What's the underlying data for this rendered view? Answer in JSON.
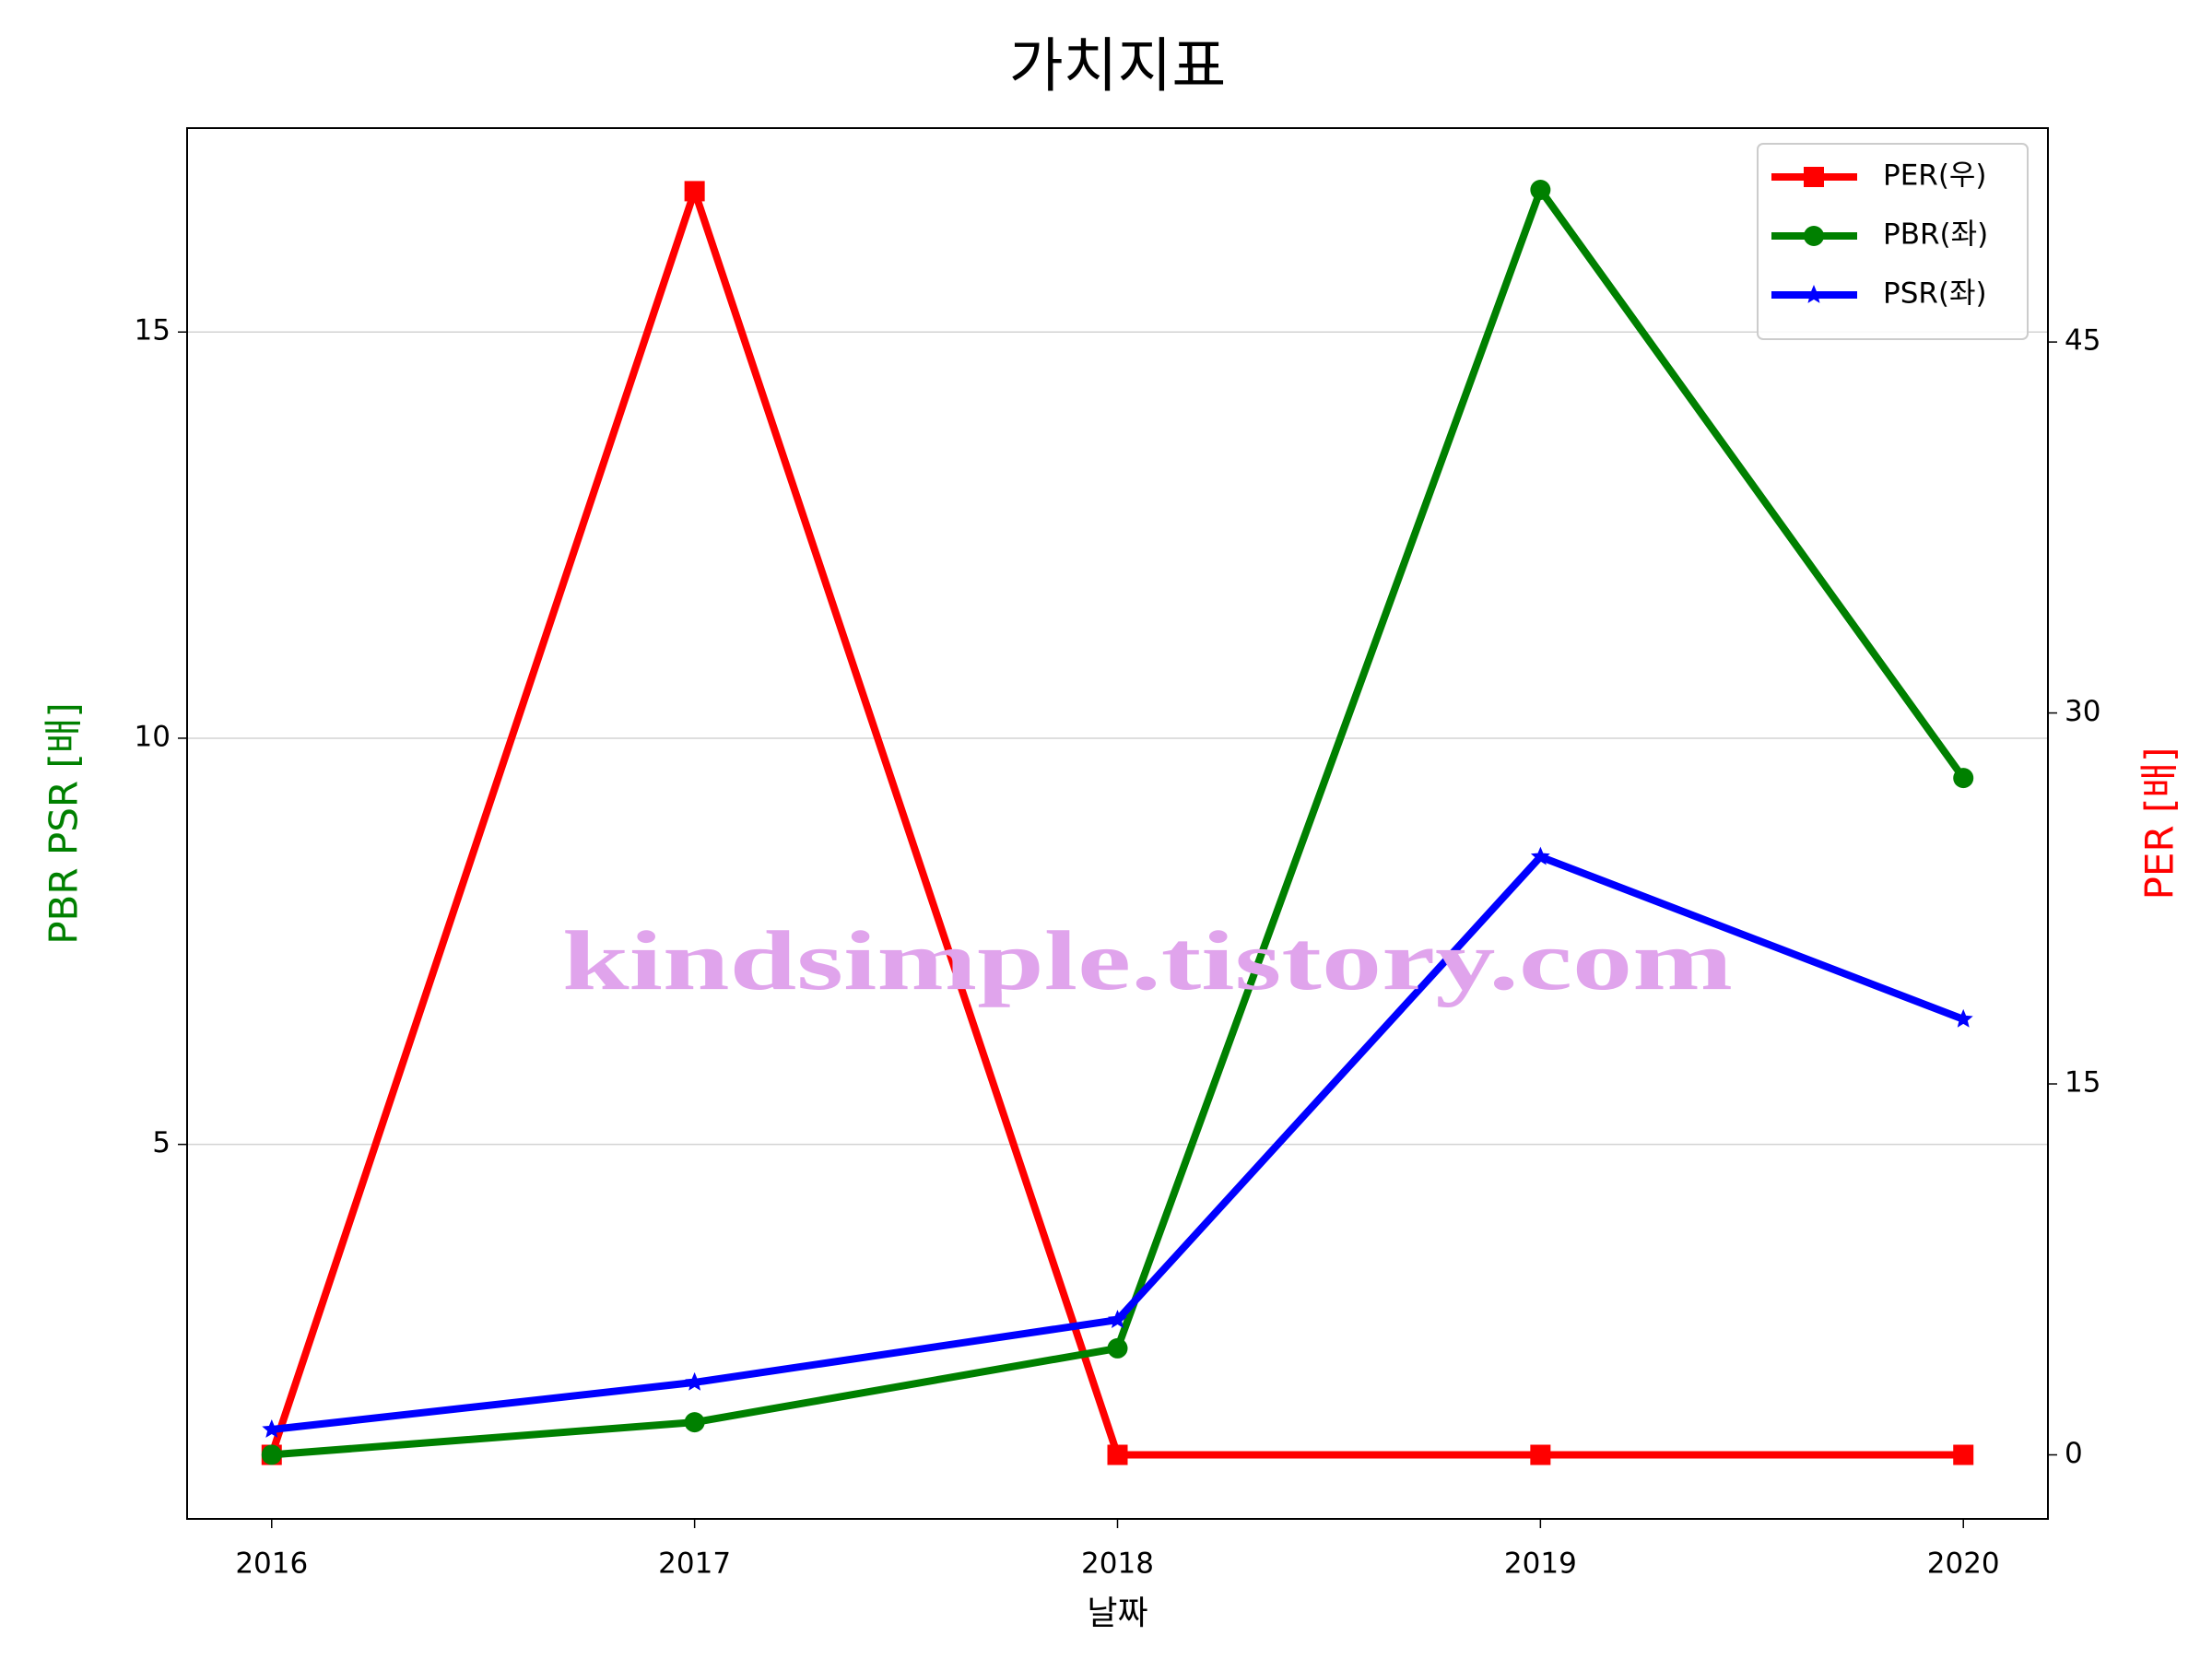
{
  "chart_data": {
    "type": "line",
    "title": "가치지표",
    "x_label": "날짜",
    "y_label": "PBR PSR [배]",
    "y2_label": "PER [배]",
    "watermark": "kindsimple.tistory.com",
    "x": [
      2016,
      2017,
      2018,
      2019,
      2020
    ],
    "xlim": [
      2015.8,
      2020.2
    ],
    "xticks": [
      2016,
      2017,
      2018,
      2019,
      2020
    ],
    "ylim": [
      0.39,
      17.51
    ],
    "yticks": [
      5,
      10,
      15
    ],
    "y2lim": [
      -2.59,
      53.65
    ],
    "y2ticks": [
      0,
      15,
      30,
      45
    ],
    "grid": true,
    "legend": "upper right",
    "series": [
      {
        "name": "PER(우)",
        "color": "#ff0000",
        "marker": "square",
        "axis": "y2",
        "values": [
          0,
          51.1,
          0,
          0,
          0
        ]
      },
      {
        "name": "PBR(좌)",
        "color": "#008000",
        "marker": "circle",
        "values": [
          1.18,
          1.58,
          2.49,
          16.75,
          9.51
        ]
      },
      {
        "name": "PSR(좌)",
        "color": "#0000ff",
        "marker": "star",
        "values": [
          1.49,
          2.07,
          2.84,
          8.54,
          6.54
        ]
      }
    ]
  }
}
